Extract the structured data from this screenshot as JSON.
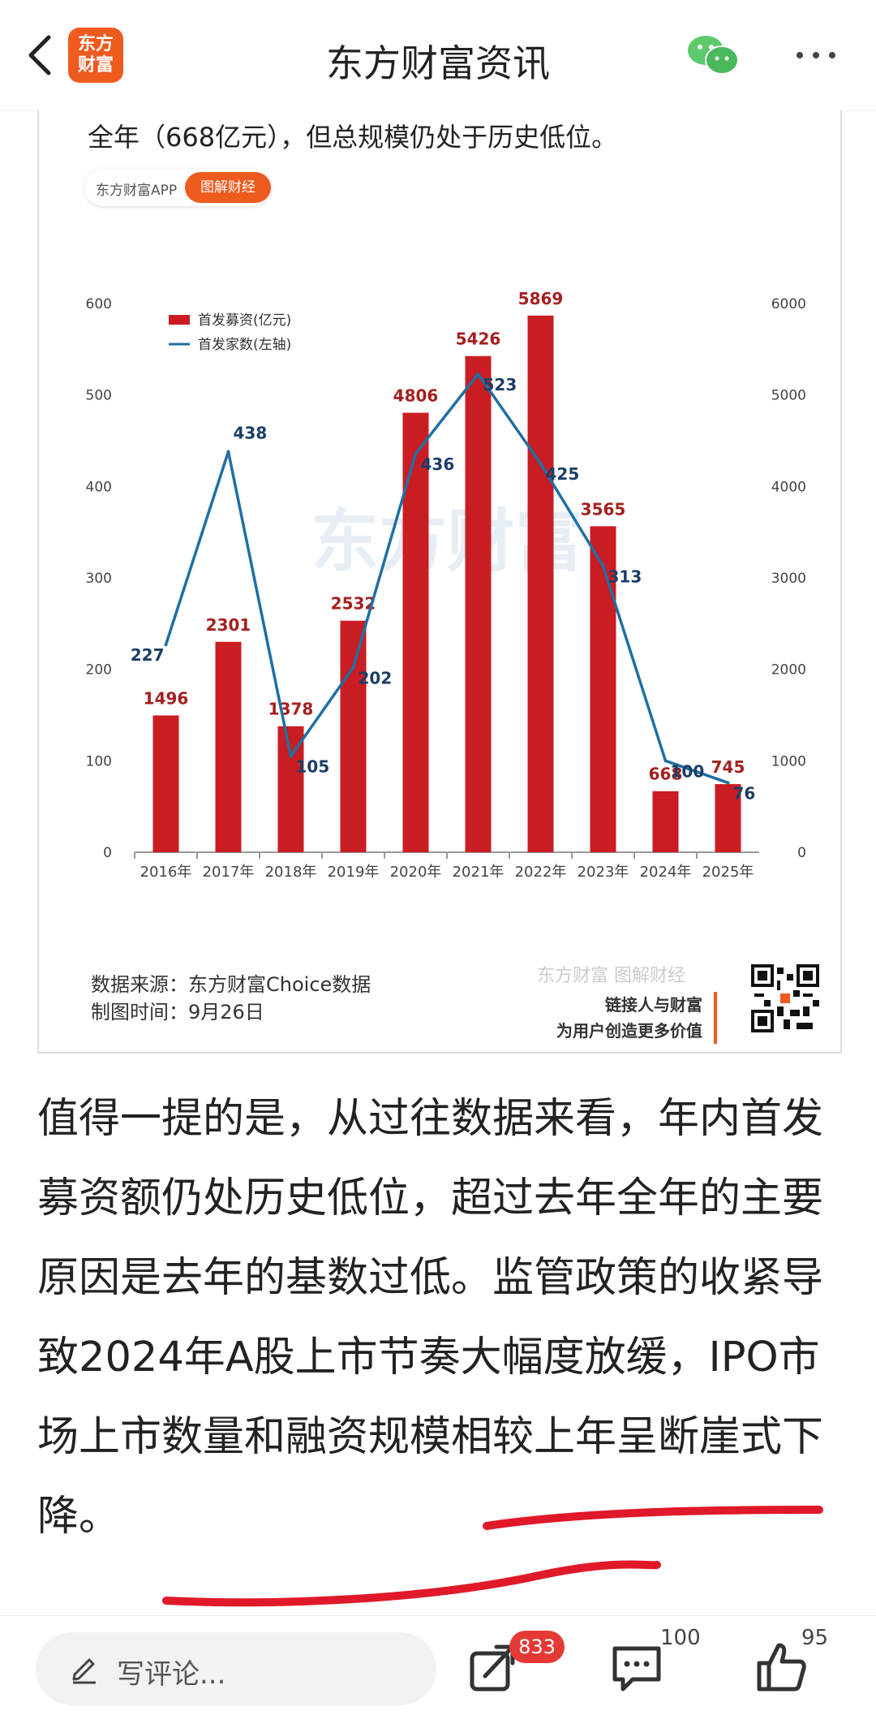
{
  "header": {
    "logo_text": "东方\n财富",
    "title": "东方财富资讯"
  },
  "article": {
    "intro_line": "全年（668亿元），但总规模仍处于历史低位。",
    "pill_app": "东方财富APP",
    "pill_tag": "图解财经",
    "paragraph": "值得一提的是，从过往数据来看，年内首发募资额仍处历史低位，超过去年全年的主要原因是去年的基数过低。监管政策的收紧导致2024年A股上市节奏大幅度放缓，IPO市场上市数量和融资规模相较上年呈断崖式下降。"
  },
  "chart_footer": {
    "source": "数据来源：东方财富Choice数据",
    "date": "制图时间：9月26日",
    "brand": "东方财富 图解财经",
    "slogan1": "链接人与财富",
    "slogan2": "为用户创造更多价值"
  },
  "chart_data": {
    "type": "bar",
    "categories": [
      "2016年",
      "2017年",
      "2018年",
      "2019年",
      "2020年",
      "2021年",
      "2022年",
      "2023年",
      "2024年",
      "2025年"
    ],
    "series": [
      {
        "name": "首发募资(亿元)",
        "type": "bar",
        "axis": "right",
        "values": [
          1496,
          2301,
          1378,
          2532,
          4806,
          5426,
          5869,
          3565,
          668,
          745
        ],
        "color": "#c91d23"
      },
      {
        "name": "首发家数(左轴)",
        "type": "line",
        "axis": "left",
        "values": [
          227,
          438,
          105,
          202,
          436,
          523,
          425,
          313,
          100,
          76
        ],
        "color": "#1f6fa3"
      }
    ],
    "left_axis": {
      "ylim": [
        0,
        600
      ],
      "ticks": [
        "0",
        "100",
        "200",
        "300",
        "400",
        "500",
        "600"
      ]
    },
    "right_axis": {
      "ylim": [
        0,
        6000
      ],
      "ticks": [
        "0",
        "1000",
        "2000",
        "3000",
        "4000",
        "5000",
        "6000"
      ]
    },
    "watermark": "东方财富",
    "legend_position": "top-left"
  },
  "bottom_bar": {
    "comment_placeholder": "写评论...",
    "share_count": "833",
    "comment_count": "100",
    "like_count": "95"
  },
  "colors": {
    "accent": "#ef5a1f",
    "bar": "#c91d23",
    "line": "#1f6fa3",
    "badge": "#e53935"
  }
}
